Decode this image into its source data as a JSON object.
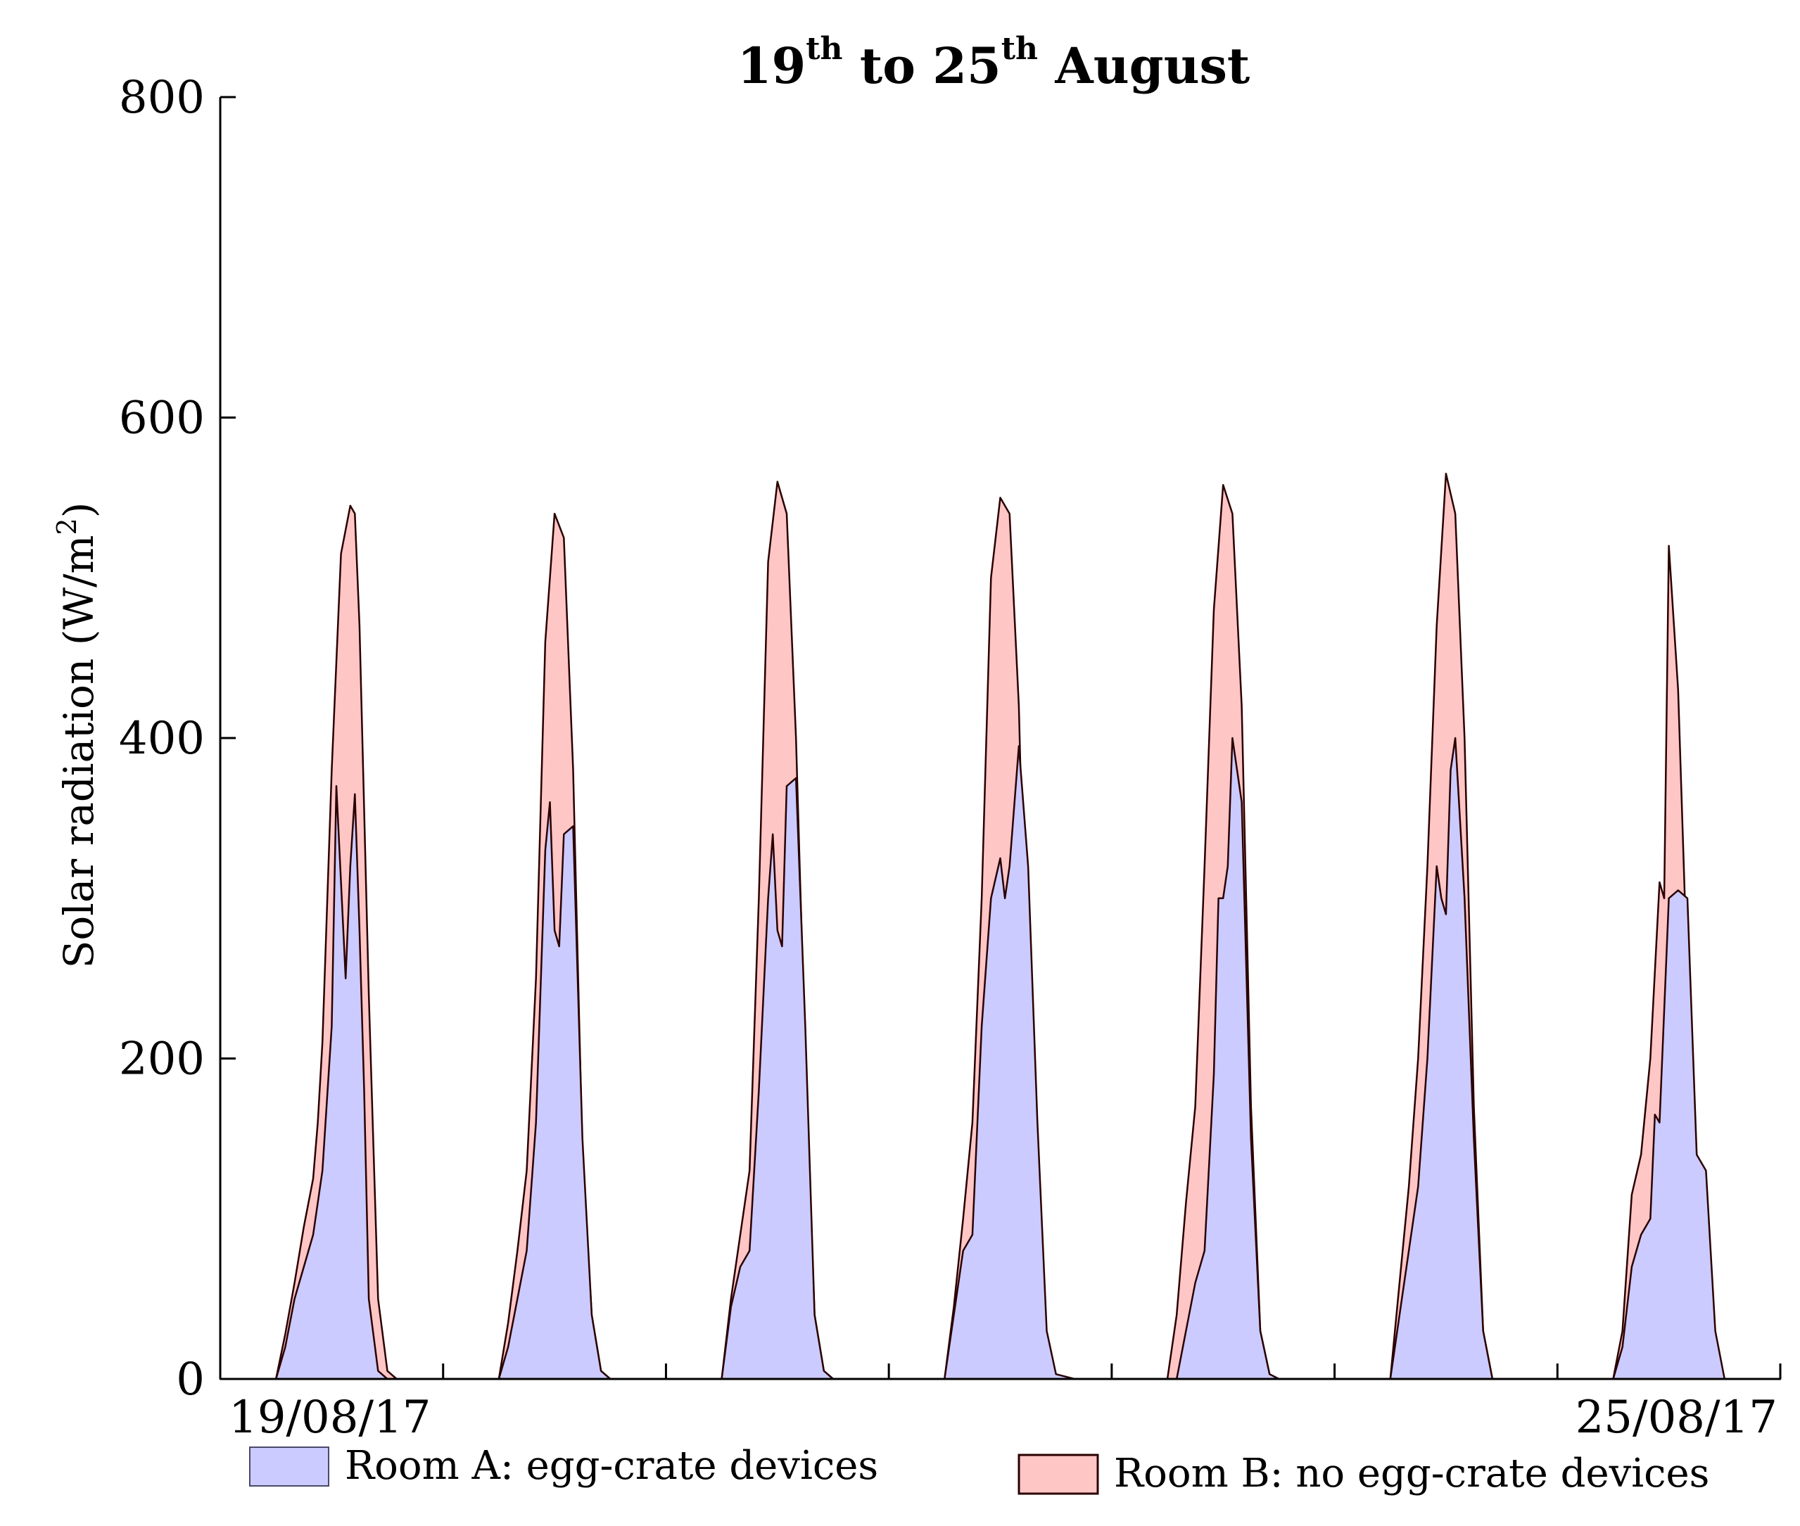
{
  "chart_data": {
    "type": "area",
    "title": {
      "day_start": "19",
      "sup_start": "th",
      "joiner": " to ",
      "day_end": "25",
      "sup_end": "th",
      "month": " August"
    },
    "ylabel": {
      "text": "Solar radiation (W/m",
      "sup": "2",
      "close": ")"
    },
    "xlabel": "",
    "ylim": [
      0,
      800
    ],
    "yticks": [
      0,
      200,
      400,
      600,
      800
    ],
    "xlim": [
      0,
      168
    ],
    "xticks": [
      0,
      24,
      48,
      72,
      96,
      120,
      144,
      168
    ],
    "xtick_labels": [
      {
        "x": 0,
        "text": "19/08/17",
        "anchor": "start"
      },
      {
        "x": 168,
        "text": "25/08/17",
        "anchor": "end"
      }
    ],
    "x_unit": "hours since 19/08/17 00:00",
    "series": [
      {
        "name": "Room B: no egg-crate devices",
        "color": "#ffc6c6",
        "edge": "#2a0000",
        "x": [
          0,
          6,
          7,
          8,
          9,
          10,
          10.5,
          11,
          12,
          13,
          14,
          14.5,
          15,
          16,
          17,
          18,
          19,
          20,
          24,
          30,
          31,
          32,
          33,
          34,
          35,
          36,
          37,
          38,
          39,
          40,
          41,
          42,
          44,
          48,
          54,
          55,
          56,
          57,
          58,
          59,
          60,
          61,
          62,
          63,
          64,
          65,
          66,
          68,
          72,
          78,
          79,
          80,
          81,
          82,
          83,
          84,
          85,
          86,
          87,
          88,
          89,
          90,
          92,
          96,
          102,
          103,
          104,
          105,
          106,
          107,
          108,
          109,
          110,
          111,
          112,
          113,
          114,
          116,
          120,
          126,
          127,
          128,
          129,
          130,
          131,
          132,
          133,
          134,
          135,
          136,
          137,
          138,
          140,
          144,
          150,
          151,
          152,
          153,
          154,
          155,
          155.5,
          156,
          157,
          158,
          159,
          160,
          161,
          162,
          166,
          168
        ],
        "values": [
          0,
          0,
          28,
          60,
          95,
          125,
          160,
          210,
          380,
          515,
          545,
          540,
          470,
          240,
          50,
          5,
          0,
          0,
          0,
          0,
          35,
          80,
          130,
          250,
          460,
          540,
          525,
          380,
          140,
          40,
          5,
          0,
          0,
          0,
          0,
          50,
          90,
          130,
          300,
          510,
          560,
          540,
          400,
          200,
          40,
          5,
          0,
          0,
          0,
          0,
          45,
          100,
          160,
          300,
          500,
          550,
          540,
          420,
          190,
          30,
          3,
          0,
          0,
          0,
          0,
          40,
          110,
          170,
          320,
          480,
          558,
          540,
          420,
          170,
          30,
          3,
          0,
          0,
          0,
          0,
          60,
          120,
          200,
          320,
          470,
          565,
          540,
          400,
          170,
          30,
          0,
          0,
          0,
          0,
          0,
          30,
          115,
          140,
          200,
          310,
          300,
          520,
          430,
          250,
          140,
          30,
          0,
          0,
          0,
          0
        ]
      },
      {
        "name": "Room A: egg-crate devices",
        "color": "#cbcbff",
        "edge": "#2a0000",
        "x": [
          0,
          6,
          7,
          8,
          9,
          10,
          11,
          12,
          12.5,
          13,
          13.5,
          14,
          14.5,
          15,
          15.5,
          16,
          17,
          18,
          19,
          20,
          24,
          30,
          31,
          32,
          33,
          34,
          35,
          35.5,
          36,
          36.5,
          37,
          38,
          39,
          40,
          41,
          42,
          44,
          48,
          54,
          55,
          56,
          57,
          58,
          59,
          59.5,
          60,
          60.5,
          61,
          62,
          63,
          64,
          65,
          66,
          68,
          72,
          78,
          79,
          80,
          81,
          82,
          83,
          84,
          84.5,
          85,
          86,
          87,
          88,
          89,
          90,
          92,
          96,
          102,
          103,
          104,
          105,
          106,
          107,
          107.5,
          108,
          108.5,
          109,
          110,
          111,
          112,
          113,
          114,
          116,
          120,
          126,
          127,
          128,
          129,
          130,
          131,
          131.5,
          132,
          132.5,
          133,
          134,
          135,
          136,
          137,
          138,
          140,
          144,
          150,
          151,
          152,
          153,
          154,
          154.5,
          155,
          155.5,
          156,
          157,
          158,
          159,
          160,
          161,
          162,
          166,
          168
        ],
        "values": [
          0,
          0,
          20,
          50,
          70,
          90,
          130,
          220,
          370,
          310,
          250,
          320,
          365,
          280,
          180,
          50,
          5,
          0,
          0,
          0,
          0,
          0,
          20,
          50,
          80,
          160,
          330,
          360,
          280,
          270,
          340,
          345,
          150,
          40,
          5,
          0,
          0,
          0,
          0,
          45,
          70,
          80,
          180,
          300,
          340,
          280,
          270,
          370,
          375,
          220,
          40,
          5,
          0,
          0,
          0,
          0,
          40,
          80,
          90,
          220,
          300,
          325,
          300,
          320,
          395,
          320,
          160,
          30,
          3,
          0,
          0,
          0,
          0,
          30,
          60,
          80,
          190,
          300,
          300,
          320,
          400,
          360,
          150,
          30,
          3,
          0,
          0,
          0,
          0,
          40,
          80,
          120,
          200,
          320,
          300,
          290,
          380,
          400,
          300,
          150,
          30,
          0,
          0,
          0,
          0,
          0,
          20,
          70,
          90,
          100,
          165,
          160,
          230,
          300,
          305,
          300,
          140,
          130,
          30,
          0,
          0,
          0
        ]
      }
    ],
    "legend": {
      "placement": "bottom",
      "items": [
        {
          "label": "Room A: egg-crate devices",
          "color": "#cbcbff"
        },
        {
          "label": "Room B: no egg-crate devices",
          "color": "#ffc6c6"
        }
      ]
    },
    "grid": false
  }
}
